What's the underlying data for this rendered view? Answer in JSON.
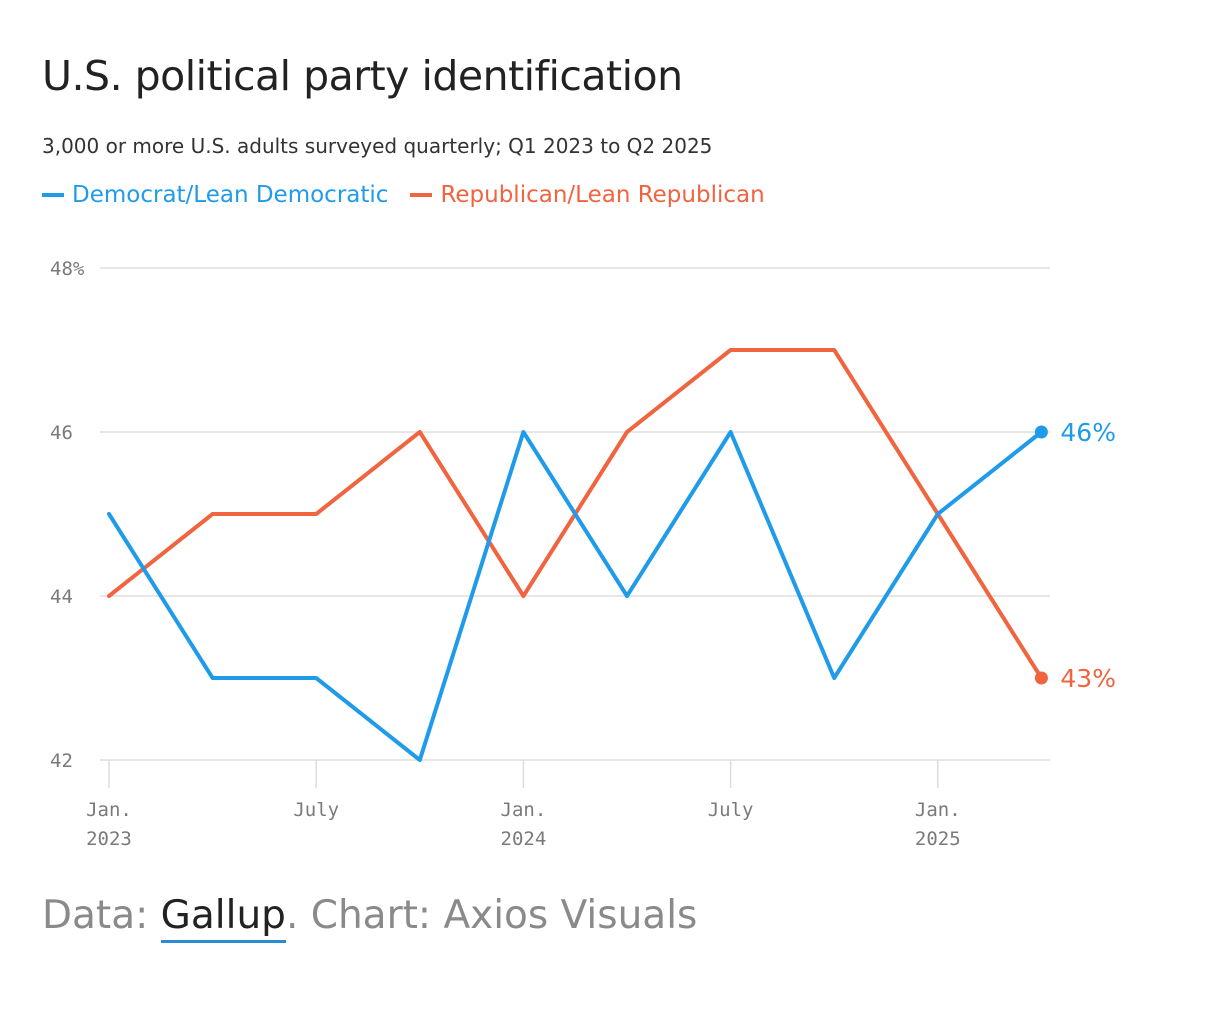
{
  "chart_data": {
    "type": "line",
    "title": "U.S. political party identification",
    "subtitle": "3,000 or more U.S. adults surveyed quarterly; Q1 2023 to Q2 2025",
    "x": [
      "Q1 2023",
      "Q2 2023",
      "Q3 2023",
      "Q4 2023",
      "Q1 2024",
      "Q2 2024",
      "Q3 2024",
      "Q4 2024",
      "Q1 2025",
      "Q2 2025"
    ],
    "x_ticks": [
      {
        "index": 0,
        "label1": "Jan.",
        "label2": "2023"
      },
      {
        "index": 2,
        "label1": "July",
        "label2": ""
      },
      {
        "index": 4,
        "label1": "Jan.",
        "label2": "2024"
      },
      {
        "index": 6,
        "label1": "July",
        "label2": ""
      },
      {
        "index": 8,
        "label1": "Jan.",
        "label2": "2025"
      }
    ],
    "y_ticks": [
      {
        "value": 48,
        "label": "48%"
      },
      {
        "value": 46,
        "label": "46"
      },
      {
        "value": 44,
        "label": "44"
      },
      {
        "value": 42,
        "label": "42"
      }
    ],
    "ylim": [
      42,
      48
    ],
    "grid": true,
    "legend_placement": "top-left",
    "series": [
      {
        "name": "Democrat/Lean Democratic",
        "color": "#1f9bea",
        "values": [
          45,
          43,
          43,
          42,
          46,
          44,
          46,
          43,
          45,
          46
        ],
        "end_label": "46%"
      },
      {
        "name": "Republican/Lean Republican",
        "color": "#f0643f",
        "values": [
          44,
          45,
          45,
          46,
          44,
          46,
          47,
          47,
          45,
          43
        ],
        "end_label": "43%"
      }
    ],
    "source_prefix": "Data: ",
    "source_link": "Gallup",
    "source_suffix": ". Chart: Axios Visuals"
  }
}
